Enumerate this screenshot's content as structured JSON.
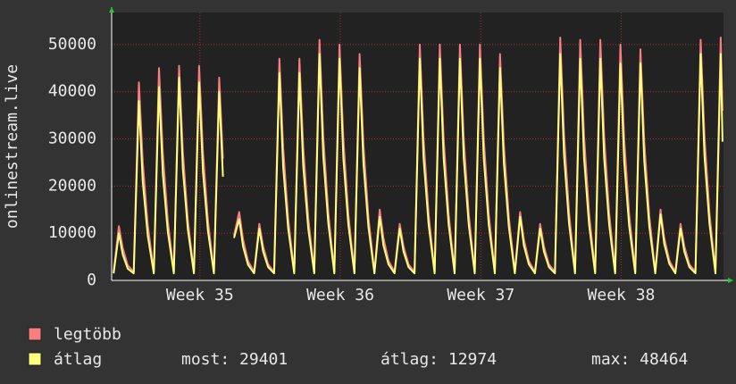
{
  "chart_data": {
    "type": "line",
    "y_label": "onlinestream.live",
    "x": [
      0.1,
      0.36,
      0.55,
      0.8,
      1.1,
      1.36,
      1.55,
      1.8,
      2.1,
      2.36,
      2.55,
      2.8,
      3.1,
      3.36,
      3.55,
      3.8,
      4.1,
      4.36,
      4.55,
      4.8,
      5.1,
      5.36,
      5.55,
      5.8,
      6.1,
      6.36,
      6.55,
      6.8,
      7.1,
      7.36,
      7.55,
      7.8,
      8.1,
      8.36,
      8.55,
      8.8,
      9.1,
      9.36,
      9.55,
      9.8,
      10.1,
      10.36,
      10.55,
      10.8,
      11.1,
      11.36,
      11.55,
      11.8,
      12.1,
      12.36,
      12.55,
      12.8,
      13.1,
      13.36,
      13.55,
      13.8,
      14.1,
      14.36,
      14.55,
      14.8,
      15.1,
      15.36,
      15.55,
      15.8,
      16.1,
      16.36,
      16.55,
      16.8,
      17.1,
      17.36,
      17.55,
      17.8,
      18.1,
      18.36,
      18.55,
      18.8,
      19.1,
      19.36,
      19.55,
      19.8,
      20.1,
      20.36,
      20.55,
      20.8,
      21.1,
      21.36,
      21.55,
      21.8,
      22.1,
      22.36,
      22.55,
      22.8,
      23.1,
      23.36,
      23.55,
      23.8,
      24.1,
      24.36,
      24.55,
      24.8,
      25.1,
      25.36,
      25.55,
      25.8,
      26.1,
      26.36,
      26.55,
      26.8,
      27.1,
      27.36,
      27.55,
      27.8,
      28.1,
      28.36,
      28.55,
      28.8,
      29.1,
      29.36,
      29.55,
      29.8,
      30.1,
      30.36,
      30.45
    ],
    "series": [
      {
        "name": "legtöbb",
        "color": "#f77f7f",
        "values": [
          1800,
          11500,
          6900,
          3200,
          1800,
          42000,
          25200,
          11800,
          1800,
          45000,
          27000,
          12600,
          1800,
          45500,
          27300,
          12700,
          1800,
          45500,
          27300,
          12700,
          1800,
          43000,
          25800,
          null,
          9500,
          14500,
          8700,
          4100,
          1800,
          12000,
          7200,
          3400,
          1800,
          47000,
          28200,
          13200,
          1800,
          47000,
          28200,
          13200,
          1800,
          51000,
          30600,
          14300,
          1800,
          50000,
          30000,
          14000,
          1800,
          48000,
          28800,
          13400,
          1800,
          15000,
          9000,
          4200,
          1800,
          12000,
          7200,
          3400,
          1800,
          50000,
          30000,
          14000,
          1800,
          50000,
          30000,
          14000,
          1800,
          50000,
          30000,
          14000,
          1800,
          50000,
          30000,
          14000,
          1800,
          48000,
          28800,
          13400,
          1800,
          14500,
          8700,
          4100,
          1800,
          12000,
          7200,
          3400,
          1800,
          51500,
          30900,
          14400,
          1800,
          51000,
          30600,
          14300,
          1800,
          51000,
          30600,
          14300,
          1800,
          50000,
          30000,
          14000,
          1800,
          49000,
          29400,
          13700,
          1800,
          15000,
          9000,
          4200,
          1800,
          12000,
          7200,
          3400,
          1800,
          51000,
          30600,
          14300,
          1800,
          51500,
          36000
        ]
      },
      {
        "name": "átlag",
        "color": "#ffff80",
        "values": [
          1500,
          10000,
          5500,
          2500,
          1500,
          38000,
          21000,
          9500,
          1500,
          41000,
          22500,
          10300,
          1500,
          43000,
          23700,
          10800,
          1500,
          42000,
          23100,
          10500,
          1500,
          40000,
          22000,
          null,
          9000,
          13000,
          7200,
          3300,
          1500,
          11000,
          6100,
          2800,
          1500,
          44000,
          24200,
          11000,
          1500,
          44000,
          24200,
          11000,
          1500,
          48000,
          26400,
          12000,
          1500,
          47000,
          25900,
          11800,
          1500,
          45000,
          24800,
          11300,
          1500,
          13500,
          7400,
          3400,
          1500,
          11000,
          6100,
          2800,
          1500,
          47000,
          25900,
          11800,
          1500,
          47000,
          25900,
          11800,
          1500,
          47000,
          25900,
          11800,
          1500,
          47000,
          25900,
          11800,
          1500,
          45000,
          24800,
          11300,
          1500,
          13500,
          7400,
          3400,
          1500,
          11000,
          6100,
          2800,
          1500,
          48000,
          26400,
          12000,
          1500,
          47000,
          25900,
          11800,
          1500,
          47000,
          25900,
          11800,
          1500,
          46000,
          25300,
          11500,
          1500,
          46000,
          25300,
          11500,
          1500,
          14000,
          7700,
          3500,
          1500,
          11000,
          6100,
          2800,
          1500,
          48000,
          26400,
          12000,
          1500,
          48000,
          29401
        ]
      }
    ],
    "xlim": [
      0,
      30.5
    ],
    "xticks": [
      {
        "value": 4.4,
        "label": "Week 35"
      },
      {
        "value": 11.4,
        "label": "Week 36"
      },
      {
        "value": 18.4,
        "label": "Week 37"
      },
      {
        "value": 25.4,
        "label": "Week 38"
      }
    ],
    "ylim": [
      0,
      56800
    ],
    "yticks": [
      0,
      10000,
      20000,
      30000,
      40000,
      50000
    ],
    "grid": true,
    "stats": [
      "most: 29401",
      "átlag: 12974",
      "max: 48464"
    ]
  }
}
